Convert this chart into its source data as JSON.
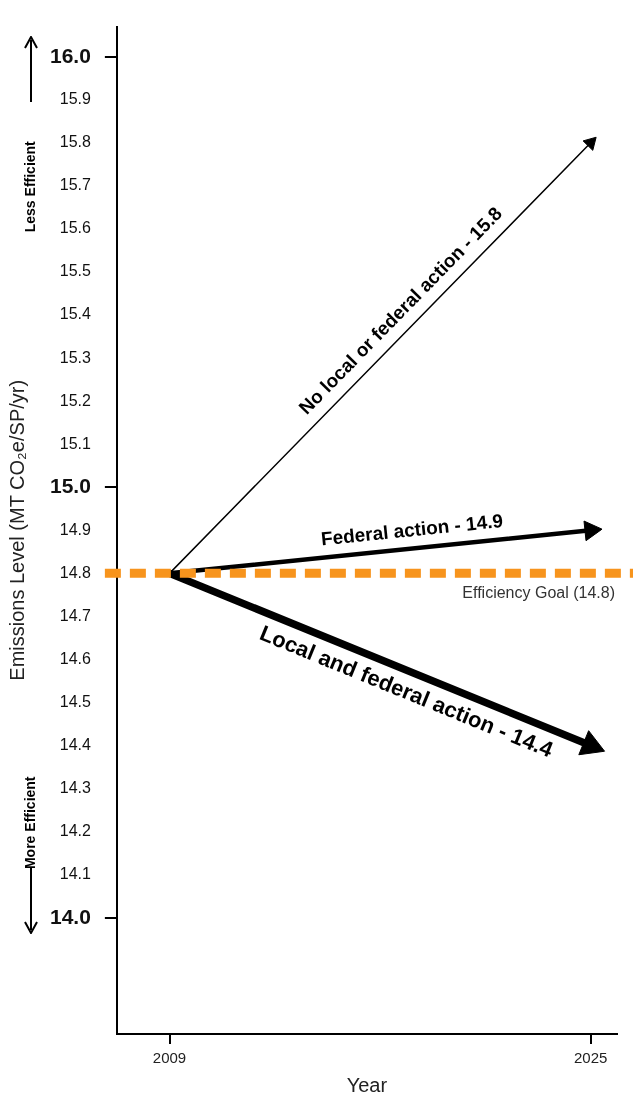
{
  "chart_data": {
    "type": "line",
    "xlabel": "Year",
    "ylabel": "Emissions Level (MT CO₂e/SP/yr)",
    "x": [
      2009,
      2025
    ],
    "series": [
      {
        "name": "No local or federal action - 15.8",
        "color": "#000000",
        "values": [
          14.8,
          15.8
        ]
      },
      {
        "name": "Federal action - 14.9",
        "color": "#000000",
        "values": [
          14.8,
          14.9
        ]
      },
      {
        "name": "Local and federal action - 14.4",
        "color": "#000000",
        "values": [
          14.8,
          14.4
        ]
      }
    ],
    "xlim": [
      2007,
      2026
    ],
    "xticks": [
      2009,
      2025
    ],
    "ylim": [
      13.73,
      16.07
    ],
    "yticks": [
      {
        "value": 14,
        "label": "14.0"
      },
      14.1,
      14.2,
      14.3,
      14.4,
      14.5,
      14.6,
      14.7,
      14.8,
      14.9,
      {
        "value": 15,
        "label": "15.0"
      },
      15.1,
      15.2,
      15.3,
      15.4,
      15.5,
      15.6,
      15.7,
      15.8,
      15.9,
      {
        "value": 16,
        "label": "16.0"
      }
    ],
    "ref_lines": [
      {
        "axis": "y",
        "value": 14.8,
        "label": "Efficiency Goal (14.8)",
        "color": "#f7941d",
        "line_style": "dashed"
      }
    ],
    "annotations": [
      "Less Efficient",
      "More Efficient"
    ],
    "grid": false,
    "legend": false,
    "marker": "triangle",
    "line_style": "solid"
  }
}
